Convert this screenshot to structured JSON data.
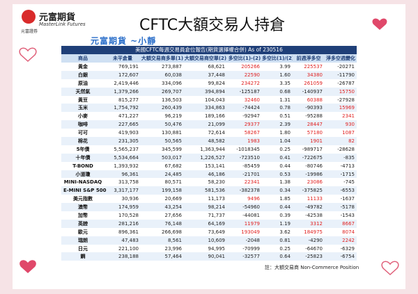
{
  "header": {
    "brand": "元富期貨",
    "brand_en": "MasterLink Futures",
    "securities": "元富證券",
    "title": "CFTC大額交易人持倉",
    "subtitle": "元富期貨 ~小靜"
  },
  "table": {
    "caption": "美國CFTC每週交易員倉位報告(期貨選擇權合併) As of 230516",
    "columns": [
      "商品",
      "未平倉量",
      "大額交易商多單(1)",
      "大額交易商空單(2)",
      "多空比(1)-(2)",
      "多空比(1)/(2)",
      "前週淨多空",
      "淨多空週變化"
    ],
    "rows": [
      [
        "黃金",
        "769,191",
        "273,887",
        "68,621",
        "205266",
        "3.99",
        "225537",
        "-20271"
      ],
      [
        "白銀",
        "172,607",
        "60,038",
        "37,448",
        "22590",
        "1.60",
        "34380",
        "-11790"
      ],
      [
        "原油",
        "2,419,446",
        "334,096",
        "99,824",
        "234272",
        "3.35",
        "261059",
        "-26787"
      ],
      [
        "天然氣",
        "1,379,266",
        "269,707",
        "394,894",
        "-125187",
        "0.68",
        "-140937",
        "15750"
      ],
      [
        "黃豆",
        "815,277",
        "136,503",
        "104,043",
        "32460",
        "1.31",
        "60388",
        "-27928"
      ],
      [
        "玉米",
        "1,754,792",
        "260,439",
        "334,863",
        "-74424",
        "0.78",
        "-90393",
        "15969"
      ],
      [
        "小麥",
        "471,227",
        "96,219",
        "189,166",
        "-92947",
        "0.51",
        "-95288",
        "2341"
      ],
      [
        "咖啡",
        "227,665",
        "50,476",
        "21,099",
        "29377",
        "2.39",
        "28447",
        "930"
      ],
      [
        "可可",
        "419,903",
        "130,881",
        "72,614",
        "58267",
        "1.80",
        "57180",
        "1087"
      ],
      [
        "棉花",
        "231,305",
        "50,565",
        "48,582",
        "1983",
        "1.04",
        "1901",
        "82"
      ],
      [
        "5年債",
        "5,565,237",
        "345,599",
        "1,363,944",
        "-1018345",
        "0.25",
        "-989717",
        "-28628"
      ],
      [
        "十年債",
        "5,534,664",
        "503,017",
        "1,226,527",
        "-723510",
        "0.41",
        "-722675",
        "-835"
      ],
      [
        "T-BOND",
        "1,393,932",
        "67,682",
        "153,141",
        "-85459",
        "0.44",
        "-80746",
        "-4713"
      ],
      [
        "小道瓊",
        "96,361",
        "24,485",
        "46,186",
        "-21701",
        "0.53",
        "-19986",
        "-1715"
      ],
      [
        "MINI-NASDAQ",
        "313,758",
        "80,571",
        "58,230",
        "22341",
        "1.38",
        "23086",
        "-745"
      ],
      [
        "E-MINI S&P 500",
        "3,317,177",
        "199,158",
        "581,536",
        "-382378",
        "0.34",
        "-375825",
        "-6553"
      ],
      [
        "美元指數",
        "30,936",
        "20,669",
        "11,173",
        "9496",
        "1.85",
        "11133",
        "-1637"
      ],
      [
        "澳幣",
        "174,959",
        "43,254",
        "98,214",
        "-54960",
        "0.44",
        "-49782",
        "-5178"
      ],
      [
        "加幣",
        "170,528",
        "27,656",
        "71,737",
        "-44081",
        "0.39",
        "-42538",
        "-1543"
      ],
      [
        "英鎊",
        "281,216",
        "76,148",
        "64,169",
        "11979",
        "1.19",
        "3312",
        "8667"
      ],
      [
        "歐元",
        "896,361",
        "266,698",
        "73,649",
        "193049",
        "3.62",
        "184975",
        "8074"
      ],
      [
        "瑞朗",
        "47,483",
        "8,561",
        "10,609",
        "-2048",
        "0.81",
        "-4290",
        "2242"
      ],
      [
        "日元",
        "221,100",
        "23,996",
        "94,995",
        "-70999",
        "0.25",
        "-64670",
        "-6329"
      ],
      [
        "鋼",
        "238,188",
        "57,464",
        "90,041",
        "-32577",
        "0.64",
        "-25823",
        "-6754"
      ]
    ]
  },
  "footnote": "註：大額交易商 Non-Commerce Position"
}
